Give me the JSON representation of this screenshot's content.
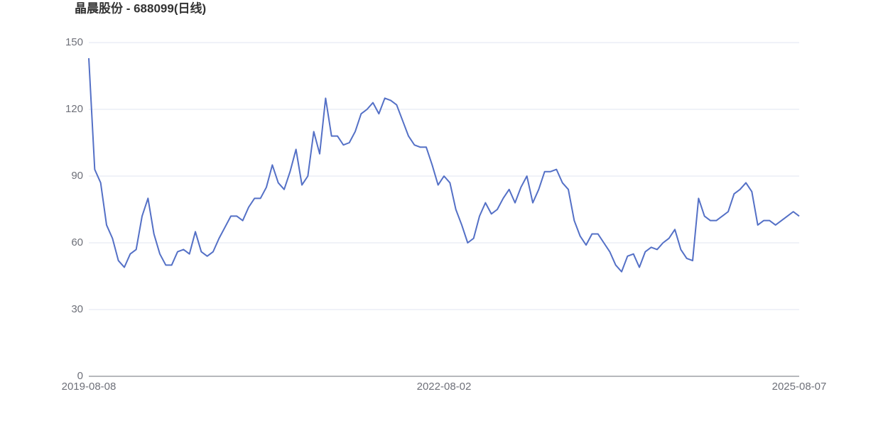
{
  "chart_data": {
    "type": "line",
    "title": "晶晨股份 - 688099(日线)",
    "categories": [
      "2019-08-08",
      null,
      null,
      null,
      null,
      null,
      null,
      null,
      null,
      null,
      null,
      null,
      null,
      null,
      null,
      null,
      null,
      null,
      null,
      null,
      null,
      null,
      null,
      null,
      null,
      null,
      null,
      null,
      null,
      null,
      null,
      null,
      null,
      null,
      null,
      null,
      null,
      null,
      null,
      null,
      null,
      null,
      null,
      null,
      null,
      null,
      null,
      null,
      null,
      null,
      null,
      null,
      null,
      null,
      null,
      null,
      null,
      null,
      null,
      null,
      "2022-08-02",
      null,
      null,
      null,
      null,
      null,
      null,
      null,
      null,
      null,
      null,
      null,
      null,
      null,
      null,
      null,
      null,
      null,
      null,
      null,
      null,
      null,
      null,
      null,
      null,
      null,
      null,
      null,
      null,
      null,
      null,
      null,
      null,
      null,
      null,
      null,
      null,
      null,
      null,
      null,
      null,
      null,
      null,
      null,
      null,
      null,
      null,
      null,
      null,
      null,
      null,
      null,
      null,
      null,
      null,
      null,
      null,
      null,
      null,
      null,
      "2025-08-07"
    ],
    "values": [
      143,
      93,
      87,
      68,
      62,
      52,
      49,
      55,
      57,
      72,
      80,
      64,
      55,
      50,
      50,
      56,
      57,
      55,
      65,
      56,
      54,
      56,
      62,
      67,
      72,
      72,
      70,
      76,
      80,
      80,
      85,
      95,
      87,
      84,
      92,
      102,
      86,
      90,
      110,
      100,
      125,
      108,
      108,
      104,
      105,
      110,
      118,
      120,
      123,
      118,
      125,
      124,
      122,
      115,
      108,
      104,
      103,
      103,
      95,
      86,
      90,
      87,
      75,
      68,
      60,
      62,
      72,
      78,
      73,
      75,
      80,
      84,
      78,
      85,
      90,
      78,
      84,
      92,
      92,
      93,
      87,
      84,
      70,
      63,
      59,
      64,
      64,
      60,
      56,
      50,
      47,
      54,
      55,
      49,
      56,
      58,
      57,
      60,
      62,
      66,
      57,
      53,
      52,
      80,
      72,
      70,
      70,
      72,
      74,
      82,
      84,
      87,
      83,
      68,
      70,
      70,
      68,
      70,
      72,
      74,
      72
    ],
    "color": "#5470c6",
    "ylim": [
      0,
      150
    ],
    "yticks": [
      0,
      30,
      60,
      90,
      120,
      150
    ],
    "grid": true
  }
}
